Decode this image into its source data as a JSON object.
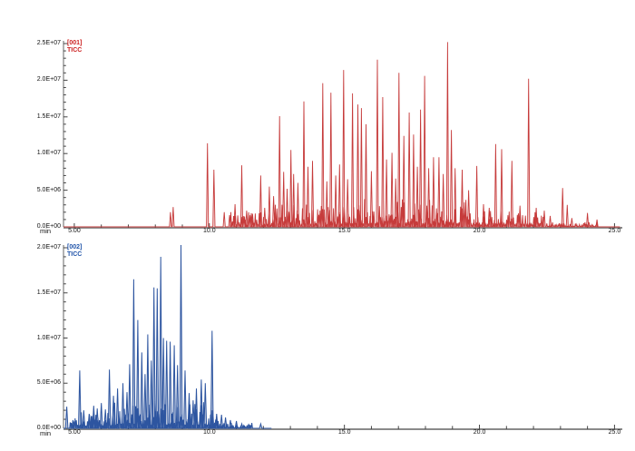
{
  "background": "#ffffff",
  "chart_data": [
    {
      "type": "line",
      "kind": "chromatogram",
      "series_id": "[001]",
      "series_name": "TICC",
      "color": "#c63b3b",
      "fill_color": "rgba(228,120,120,0.25)",
      "label_color": "#cc2222",
      "xlabel": "min",
      "x_range": [
        4.6,
        25.3
      ],
      "x_major_ticks": [
        {
          "value": 5,
          "label": "5.00"
        },
        {
          "value": 10,
          "label": "10.0"
        },
        {
          "value": 15,
          "label": "15.0"
        },
        {
          "value": 20,
          "label": "20.0"
        },
        {
          "value": 25,
          "label": "25.0"
        }
      ],
      "x_minor_step_min": 1,
      "ylim": [
        0,
        25000000
      ],
      "y_major_ticks": [
        {
          "value": 0,
          "label": "0.0E+00"
        },
        {
          "value": 5000000,
          "label": "5.0E+06"
        },
        {
          "value": 10000000,
          "label": "1.0E+07"
        },
        {
          "value": 15000000,
          "label": "1.5E+07"
        },
        {
          "value": 20000000,
          "label": "2.0E+07"
        },
        {
          "value": 25000000,
          "label": "2.5E+07"
        }
      ],
      "y_minor_step": 1000000,
      "peak_intensity_unit": "counts x 1e6",
      "peaks": [
        [
          8.56,
          2.0
        ],
        [
          8.66,
          2.7
        ],
        [
          9.93,
          11.4
        ],
        [
          10.17,
          7.8
        ],
        [
          10.55,
          2.0
        ],
        [
          10.75,
          1.6
        ],
        [
          10.95,
          3.1
        ],
        [
          11.2,
          8.4
        ],
        [
          11.38,
          2.2
        ],
        [
          11.6,
          1.8
        ],
        [
          11.9,
          7.0
        ],
        [
          12.05,
          2.6
        ],
        [
          12.22,
          5.5
        ],
        [
          12.38,
          4.2
        ],
        [
          12.6,
          15.1
        ],
        [
          12.75,
          7.5
        ],
        [
          12.88,
          5.2
        ],
        [
          13.02,
          10.5
        ],
        [
          13.12,
          7.2
        ],
        [
          13.28,
          6.0
        ],
        [
          13.5,
          17.1
        ],
        [
          13.65,
          8.2
        ],
        [
          13.82,
          9.0
        ],
        [
          14.2,
          19.6
        ],
        [
          14.35,
          6.2
        ],
        [
          14.5,
          18.3
        ],
        [
          14.68,
          7.0
        ],
        [
          14.82,
          8.5
        ],
        [
          14.97,
          21.4
        ],
        [
          15.12,
          6.5
        ],
        [
          15.3,
          18.2
        ],
        [
          15.5,
          16.7
        ],
        [
          15.63,
          16.2
        ],
        [
          15.8,
          14.0
        ],
        [
          16.0,
          7.6
        ],
        [
          16.22,
          22.8
        ],
        [
          16.42,
          17.7
        ],
        [
          16.56,
          9.2
        ],
        [
          16.76,
          10.1
        ],
        [
          16.9,
          6.6
        ],
        [
          17.02,
          21.0
        ],
        [
          17.2,
          12.4
        ],
        [
          17.4,
          15.6
        ],
        [
          17.56,
          12.6
        ],
        [
          17.7,
          8.2
        ],
        [
          17.82,
          16.0
        ],
        [
          17.97,
          20.6
        ],
        [
          18.12,
          8.0
        ],
        [
          18.3,
          9.5
        ],
        [
          18.5,
          9.5
        ],
        [
          18.66,
          7.2
        ],
        [
          18.82,
          25.2
        ],
        [
          18.96,
          13.2
        ],
        [
          19.1,
          8.0
        ],
        [
          19.36,
          7.8
        ],
        [
          19.6,
          5.0
        ],
        [
          19.9,
          8.3
        ],
        [
          20.15,
          3.1
        ],
        [
          20.36,
          2.6
        ],
        [
          20.6,
          11.3
        ],
        [
          20.82,
          10.6
        ],
        [
          21.2,
          9.0
        ],
        [
          21.5,
          2.9
        ],
        [
          21.82,
          20.2
        ],
        [
          22.1,
          2.6
        ],
        [
          22.4,
          2.2
        ],
        [
          22.62,
          1.5
        ],
        [
          23.08,
          5.3
        ],
        [
          23.25,
          3.0
        ],
        [
          23.42,
          1.2
        ],
        [
          24.0,
          1.9
        ],
        [
          24.35,
          1.0
        ]
      ],
      "noise_bands": [
        [
          10.8,
          12.4,
          2.2
        ],
        [
          12.4,
          15.0,
          3.2
        ],
        [
          15.0,
          19.6,
          3.8
        ],
        [
          19.6,
          22.4,
          2.4
        ],
        [
          22.5,
          24.4,
          0.7
        ]
      ],
      "trace_end_min": 25.2
    },
    {
      "type": "line",
      "kind": "chromatogram",
      "series_id": "[002]",
      "series_name": "TICC",
      "color": "#2d55a0",
      "fill_color": "rgba(120,142,186,0.5)",
      "label_color": "#2255aa",
      "xlabel": "min",
      "x_range": [
        4.6,
        25.3
      ],
      "x_major_ticks": [
        {
          "value": 5,
          "label": "5.00"
        },
        {
          "value": 10,
          "label": "10.0"
        },
        {
          "value": 15,
          "label": "15.0"
        },
        {
          "value": 20,
          "label": "20.0"
        },
        {
          "value": 25,
          "label": "25.0"
        }
      ],
      "x_minor_step_min": 1,
      "ylim": [
        0,
        20000000
      ],
      "y_major_ticks": [
        {
          "value": 0,
          "label": "0.0E+00"
        },
        {
          "value": 5000000,
          "label": "5.0E+06"
        },
        {
          "value": 10000000,
          "label": "1.0E+07"
        },
        {
          "value": 15000000,
          "label": "1.5E+07"
        },
        {
          "value": 20000000,
          "label": "2.0E+07"
        }
      ],
      "y_minor_step": 1000000,
      "peak_intensity_unit": "counts x 1e6",
      "peaks": [
        [
          4.72,
          2.4
        ],
        [
          4.95,
          0.9
        ],
        [
          5.2,
          6.4
        ],
        [
          5.35,
          2.0
        ],
        [
          5.55,
          1.6
        ],
        [
          5.72,
          2.5
        ],
        [
          5.85,
          2.2
        ],
        [
          6.0,
          2.8
        ],
        [
          6.15,
          2.1
        ],
        [
          6.3,
          6.5
        ],
        [
          6.45,
          3.6
        ],
        [
          6.6,
          4.4
        ],
        [
          6.8,
          5.0
        ],
        [
          6.95,
          4.0
        ],
        [
          7.05,
          7.1
        ],
        [
          7.2,
          16.5
        ],
        [
          7.35,
          12.0
        ],
        [
          7.5,
          8.4
        ],
        [
          7.62,
          6.0
        ],
        [
          7.72,
          10.4
        ],
        [
          7.85,
          7.5
        ],
        [
          7.95,
          15.6
        ],
        [
          8.07,
          15.5
        ],
        [
          8.2,
          19.0
        ],
        [
          8.3,
          10.0
        ],
        [
          8.42,
          9.7
        ],
        [
          8.55,
          9.6
        ],
        [
          8.7,
          9.2
        ],
        [
          8.82,
          7.0
        ],
        [
          8.95,
          20.3
        ],
        [
          9.1,
          6.4
        ],
        [
          9.25,
          3.9
        ],
        [
          9.4,
          3.1
        ],
        [
          9.52,
          4.4
        ],
        [
          9.7,
          5.4
        ],
        [
          9.85,
          5.0
        ],
        [
          10.1,
          10.8
        ],
        [
          10.27,
          1.6
        ],
        [
          10.45,
          1.5
        ],
        [
          10.6,
          1.2
        ],
        [
          10.78,
          0.9
        ],
        [
          11.0,
          0.8
        ],
        [
          11.2,
          0.5
        ],
        [
          11.45,
          0.4
        ],
        [
          11.9,
          0.5
        ]
      ],
      "noise_bands": [
        [
          4.85,
          6.5,
          1.9
        ],
        [
          6.5,
          10.35,
          3.0
        ],
        [
          10.4,
          11.6,
          0.6
        ]
      ],
      "trace_end_min": 12.3
    }
  ]
}
